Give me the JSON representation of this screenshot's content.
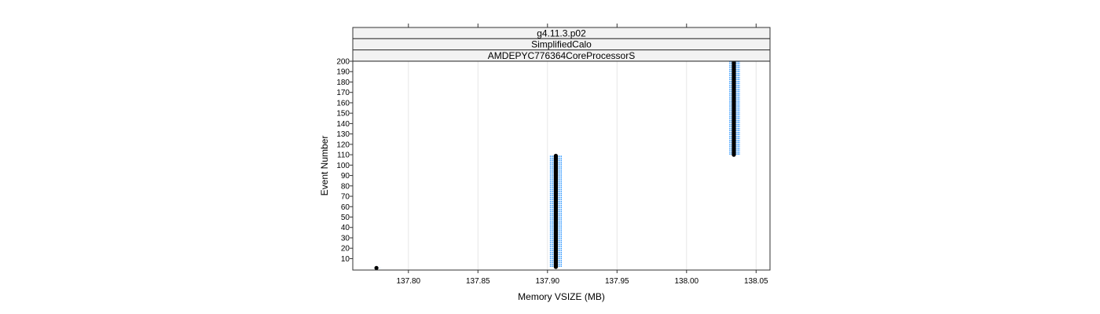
{
  "chart_data": {
    "type": "scatter",
    "panel_strips": [
      "g4.11.3.p02",
      "SimplifiedCalo",
      "AMDEPYC776364CoreProcessorS"
    ],
    "xlabel": "Memory VSIZE (MB)",
    "ylabel": "Event Number",
    "xlim": [
      137.76,
      138.06
    ],
    "ylim": [
      -1,
      200
    ],
    "x_ticks": [
      "137.80",
      "137.85",
      "137.90",
      "137.95",
      "138.00",
      "138.05"
    ],
    "y_ticks": [
      "10",
      "20",
      "30",
      "40",
      "50",
      "60",
      "70",
      "80",
      "90",
      "100",
      "110",
      "120",
      "130",
      "140",
      "150",
      "160",
      "170",
      "180",
      "190",
      "200"
    ],
    "grid": "vertical",
    "colors": {
      "points": "#000000",
      "band": "#0080ff",
      "grid": "#e6e6e6",
      "strip_fill": "#f2f2f2"
    },
    "segments": [
      {
        "x": 137.777,
        "y_start": 1,
        "y_end": 1,
        "band": [
          137.775,
          137.78
        ]
      },
      {
        "x": 137.906,
        "y_start": 2,
        "y_end": 109,
        "band": [
          137.902,
          137.91
        ]
      },
      {
        "x": 138.034,
        "y_start": 110,
        "y_end": 200,
        "band": [
          138.031,
          138.038
        ]
      }
    ]
  }
}
